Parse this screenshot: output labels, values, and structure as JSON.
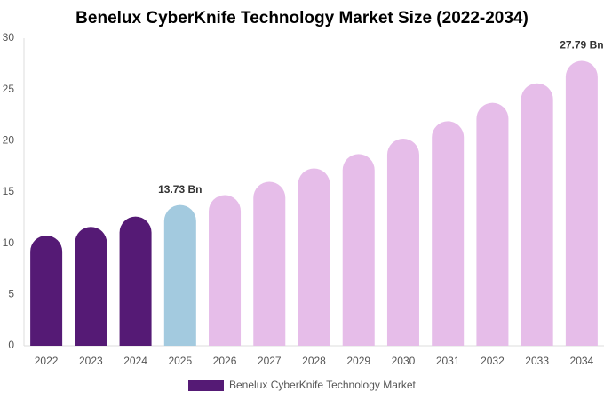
{
  "chart_data": {
    "type": "bar",
    "title": "Benelux CyberKnife Technology Market Size (2022-2034)",
    "categories": [
      "2022",
      "2023",
      "2024",
      "2025",
      "2026",
      "2027",
      "2028",
      "2029",
      "2030",
      "2031",
      "2032",
      "2033",
      "2034"
    ],
    "series": [
      {
        "name": "Benelux CyberKnife Technology Market",
        "color": "#551a75",
        "values": [
          10.75,
          11.6,
          12.6,
          13.73,
          14.7,
          16.0,
          17.3,
          18.7,
          20.2,
          21.9,
          23.7,
          25.6,
          27.79
        ],
        "value_labels": [
          null,
          null,
          null,
          "13.73 Bn",
          null,
          null,
          null,
          null,
          null,
          null,
          null,
          null,
          "27.79 Bn"
        ],
        "colors": [
          "#551a75",
          "#551a75",
          "#551a75",
          "#a3cadf",
          "#e6bde9",
          "#e6bde9",
          "#e6bde9",
          "#e6bde9",
          "#e6bde9",
          "#e6bde9",
          "#e6bde9",
          "#e6bde9",
          "#e6bde9"
        ]
      }
    ],
    "ylim": [
      0,
      30
    ],
    "yticks": [
      0,
      5,
      10,
      15,
      20,
      25,
      30
    ],
    "grid": false,
    "legend": "bottom"
  }
}
